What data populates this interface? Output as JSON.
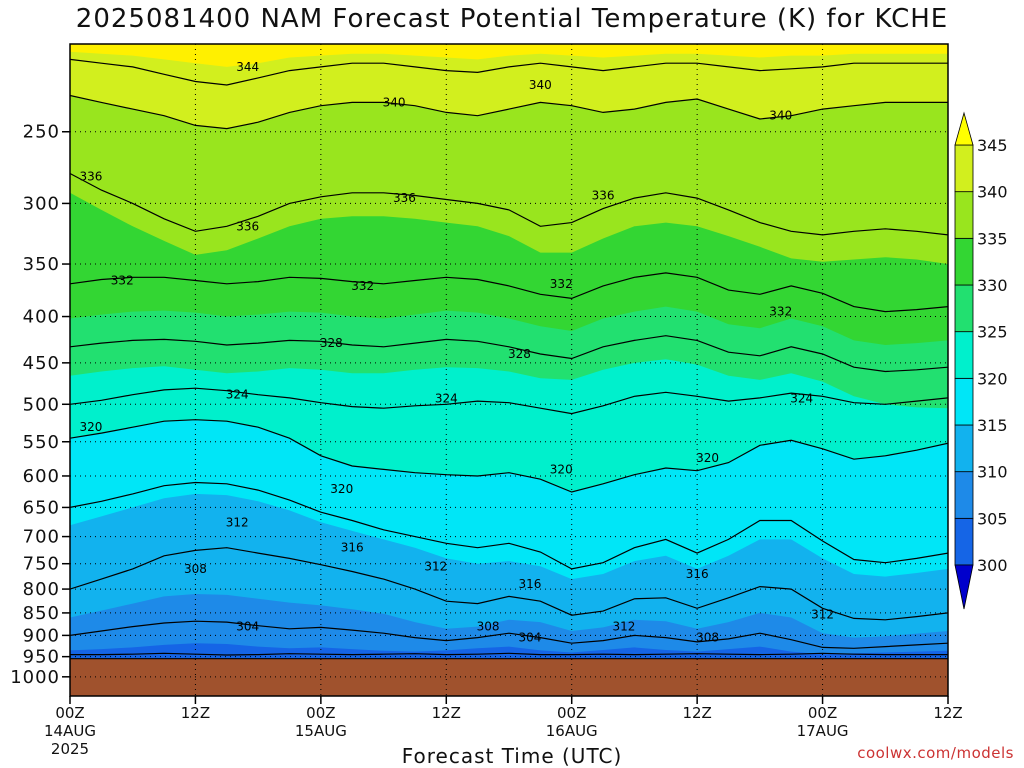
{
  "chart_data": {
    "type": "contour",
    "title": "2025081400 NAM Forecast Potential Temperature (K) for KCHE",
    "xlabel": "Forecast Time (UTC)",
    "ylabel": "",
    "credit": "coolwx.com/models",
    "y_axis": {
      "quantity": "pressure",
      "scale": "log",
      "reversed": true,
      "ylim": [
        1050,
        200
      ],
      "ticks": [
        250,
        300,
        350,
        400,
        450,
        500,
        550,
        600,
        650,
        700,
        750,
        800,
        850,
        900,
        950,
        1000
      ]
    },
    "x_axis": {
      "range_hours": [
        0,
        84
      ],
      "ticks": [
        {
          "hour": 0,
          "label": "00Z",
          "sub": "14AUG",
          "year": "2025"
        },
        {
          "hour": 12,
          "label": "12Z",
          "sub": "",
          "year": ""
        },
        {
          "hour": 24,
          "label": "00Z",
          "sub": "15AUG",
          "year": ""
        },
        {
          "hour": 36,
          "label": "12Z",
          "sub": "",
          "year": ""
        },
        {
          "hour": 48,
          "label": "00Z",
          "sub": "16AUG",
          "year": ""
        },
        {
          "hour": 60,
          "label": "12Z",
          "sub": "",
          "year": ""
        },
        {
          "hour": 72,
          "label": "00Z",
          "sub": "17AUG",
          "year": ""
        },
        {
          "hour": 84,
          "label": "12Z",
          "sub": "",
          "year": ""
        }
      ]
    },
    "grid": true,
    "colorbar": {
      "levels": [
        300,
        305,
        310,
        315,
        320,
        325,
        330,
        335,
        340,
        345
      ],
      "colors": [
        "#0033ee",
        "#1565e6",
        "#1e8ae8",
        "#12b2ee",
        "#00e6f7",
        "#00f0cc",
        "#22e070",
        "#33d633",
        "#99e51e",
        "#d2ef1e",
        "#fff000"
      ],
      "min_color": "#0000cc",
      "max_color": "#ffff00",
      "extend": "both"
    },
    "terrain": {
      "below_pressure": 955,
      "color": "#a0522d"
    },
    "series": [
      {
        "level": 300,
        "pressure": [
          958,
          958,
          958,
          958,
          958,
          958,
          958,
          958,
          958,
          958,
          958,
          958,
          958,
          958,
          958,
          958,
          958,
          958,
          958,
          958,
          958,
          958,
          958,
          958,
          958,
          958,
          958,
          958,
          958
        ]
      },
      {
        "level": 304,
        "pressure": [
          945,
          945,
          944,
          942,
          944,
          946,
          945,
          943,
          944,
          945,
          944,
          943,
          945,
          944,
          942,
          945,
          945,
          944,
          945,
          944,
          943,
          944,
          945,
          944,
          942,
          944,
          945,
          945,
          945
        ]
      },
      {
        "level": 305,
        "pressure": [
          935,
          932,
          928,
          922,
          918,
          920,
          926,
          930,
          928,
          932,
          936,
          938,
          935,
          930,
          926,
          935,
          940,
          934,
          928,
          934,
          938,
          932,
          926,
          938,
          944,
          942,
          940,
          938,
          936
        ]
      },
      {
        "level": 308,
        "pressure": [
          900,
          890,
          880,
          872,
          868,
          870,
          878,
          885,
          882,
          888,
          895,
          905,
          912,
          905,
          895,
          905,
          918,
          912,
          900,
          905,
          915,
          908,
          895,
          910,
          928,
          930,
          926,
          922,
          918
        ]
      },
      {
        "level": 310,
        "pressure": [
          860,
          845,
          830,
          815,
          810,
          812,
          820,
          828,
          834,
          842,
          852,
          870,
          885,
          880,
          865,
          870,
          890,
          882,
          865,
          868,
          885,
          870,
          850,
          860,
          895,
          905,
          902,
          896,
          890
        ]
      },
      {
        "level": 312,
        "pressure": [
          800,
          780,
          760,
          735,
          725,
          720,
          730,
          740,
          752,
          765,
          780,
          800,
          825,
          830,
          815,
          825,
          855,
          846,
          820,
          818,
          840,
          818,
          795,
          800,
          840,
          862,
          865,
          858,
          850
        ]
      },
      {
        "level": 315,
        "pressure": [
          680,
          665,
          650,
          635,
          628,
          630,
          640,
          655,
          675,
          690,
          705,
          720,
          740,
          750,
          745,
          755,
          780,
          770,
          745,
          735,
          760,
          735,
          705,
          705,
          740,
          770,
          775,
          768,
          760
        ]
      },
      {
        "level": 316,
        "pressure": [
          650,
          640,
          628,
          615,
          610,
          612,
          622,
          638,
          658,
          672,
          688,
          700,
          712,
          720,
          712,
          728,
          760,
          748,
          720,
          705,
          730,
          705,
          672,
          672,
          708,
          742,
          748,
          740,
          730
        ]
      },
      {
        "level": 320,
        "pressure": [
          545,
          538,
          530,
          522,
          520,
          522,
          530,
          545,
          570,
          585,
          590,
          595,
          598,
          600,
          595,
          605,
          625,
          612,
          598,
          588,
          592,
          580,
          555,
          548,
          560,
          575,
          570,
          562,
          552
        ]
      },
      {
        "level": 324,
        "pressure": [
          500,
          495,
          488,
          482,
          480,
          483,
          488,
          492,
          498,
          503,
          505,
          502,
          500,
          496,
          498,
          505,
          512,
          502,
          490,
          485,
          490,
          496,
          492,
          486,
          490,
          498,
          500,
          496,
          492
        ]
      },
      {
        "level": 325,
        "pressure": [
          465,
          460,
          456,
          454,
          458,
          462,
          460,
          456,
          458,
          462,
          462,
          458,
          455,
          456,
          460,
          468,
          470,
          458,
          450,
          446,
          452,
          465,
          470,
          462,
          472,
          490,
          500,
          504,
          505
        ]
      },
      {
        "level": 328,
        "pressure": [
          432,
          428,
          425,
          424,
          426,
          430,
          428,
          425,
          426,
          430,
          432,
          428,
          424,
          426,
          432,
          440,
          445,
          432,
          425,
          420,
          425,
          438,
          442,
          432,
          440,
          455,
          460,
          458,
          455
        ]
      },
      {
        "level": 330,
        "pressure": [
          402,
          398,
          395,
          394,
          396,
          400,
          398,
          395,
          396,
          400,
          402,
          398,
          394,
          396,
          402,
          410,
          415,
          402,
          395,
          390,
          395,
          408,
          412,
          402,
          410,
          425,
          430,
          428,
          425
        ]
      },
      {
        "level": 332,
        "pressure": [
          368,
          364,
          362,
          362,
          365,
          368,
          366,
          362,
          363,
          366,
          368,
          365,
          362,
          364,
          370,
          378,
          382,
          370,
          362,
          358,
          362,
          374,
          378,
          370,
          377,
          390,
          395,
          393,
          390
        ]
      },
      {
        "level": 335,
        "pressure": [
          292,
          305,
          318,
          330,
          342,
          338,
          328,
          318,
          312,
          310,
          310,
          312,
          315,
          318,
          326,
          340,
          340,
          328,
          318,
          315,
          318,
          326,
          335,
          345,
          348,
          346,
          344,
          346,
          350
        ]
      },
      {
        "level": 336,
        "pressure": [
          278,
          290,
          300,
          312,
          322,
          318,
          310,
          300,
          295,
          292,
          292,
          294,
          297,
          300,
          305,
          318,
          315,
          304,
          296,
          292,
          296,
          305,
          315,
          322,
          325,
          322,
          320,
          322,
          325
        ]
      },
      {
        "level": 340,
        "pressure": [
          228,
          232,
          236,
          240,
          246,
          248,
          244,
          238,
          234,
          232,
          232,
          234,
          238,
          240,
          236,
          232,
          234,
          238,
          236,
          232,
          230,
          236,
          242,
          240,
          236,
          234,
          232,
          232,
          232
        ]
      },
      {
        "level": 344,
        "pressure": [
          208,
          210,
          212,
          216,
          220,
          222,
          218,
          214,
          212,
          210,
          210,
          212,
          214,
          215,
          212,
          210,
          212,
          214,
          212,
          210,
          210,
          212,
          214,
          213,
          212,
          210,
          210,
          210,
          210
        ]
      },
      {
        "level": 345,
        "pressure": [
          204,
          205,
          206,
          208,
          210,
          212,
          210,
          207,
          206,
          205,
          205,
          206,
          207,
          208,
          206,
          205,
          206,
          207,
          206,
          205,
          205,
          206,
          207,
          206,
          206,
          205,
          205,
          205,
          205
        ]
      }
    ],
    "hours": [
      0,
      3,
      6,
      9,
      12,
      15,
      18,
      21,
      24,
      27,
      30,
      33,
      36,
      39,
      42,
      45,
      48,
      51,
      54,
      57,
      60,
      63,
      66,
      69,
      72,
      75,
      78,
      81,
      84
    ],
    "contour_labels": [
      {
        "text": "344",
        "hour": 17,
        "pressure": 212
      },
      {
        "text": "340",
        "hour": 31,
        "pressure": 232
      },
      {
        "text": "340",
        "hour": 45,
        "pressure": 222
      },
      {
        "text": "340",
        "hour": 68,
        "pressure": 240
      },
      {
        "text": "336",
        "hour": 2,
        "pressure": 280
      },
      {
        "text": "336",
        "hour": 32,
        "pressure": 296
      },
      {
        "text": "336",
        "hour": 51,
        "pressure": 294
      },
      {
        "text": "336",
        "hour": 17,
        "pressure": 318
      },
      {
        "text": "332",
        "hour": 5,
        "pressure": 365
      },
      {
        "text": "332",
        "hour": 28,
        "pressure": 370
      },
      {
        "text": "332",
        "hour": 47,
        "pressure": 368
      },
      {
        "text": "332",
        "hour": 68,
        "pressure": 395
      },
      {
        "text": "328",
        "hour": 25,
        "pressure": 428
      },
      {
        "text": "328",
        "hour": 43,
        "pressure": 440
      },
      {
        "text": "324",
        "hour": 16,
        "pressure": 488
      },
      {
        "text": "324",
        "hour": 36,
        "pressure": 493
      },
      {
        "text": "324",
        "hour": 70,
        "pressure": 493
      },
      {
        "text": "320",
        "hour": 2,
        "pressure": 530
      },
      {
        "text": "320",
        "hour": 47,
        "pressure": 590
      },
      {
        "text": "320",
        "hour": 61,
        "pressure": 573
      },
      {
        "text": "320",
        "hour": 26,
        "pressure": 620
      },
      {
        "text": "316",
        "hour": 27,
        "pressure": 720
      },
      {
        "text": "316",
        "hour": 44,
        "pressure": 790
      },
      {
        "text": "316",
        "hour": 60,
        "pressure": 770
      },
      {
        "text": "312",
        "hour": 16,
        "pressure": 675
      },
      {
        "text": "312",
        "hour": 35,
        "pressure": 755
      },
      {
        "text": "312",
        "hour": 53,
        "pressure": 880
      },
      {
        "text": "312",
        "hour": 72,
        "pressure": 853
      },
      {
        "text": "308",
        "hour": 12,
        "pressure": 760
      },
      {
        "text": "308",
        "hour": 40,
        "pressure": 880
      },
      {
        "text": "308",
        "hour": 61,
        "pressure": 905
      },
      {
        "text": "304",
        "hour": 17,
        "pressure": 880
      },
      {
        "text": "304",
        "hour": 44,
        "pressure": 905
      }
    ]
  }
}
